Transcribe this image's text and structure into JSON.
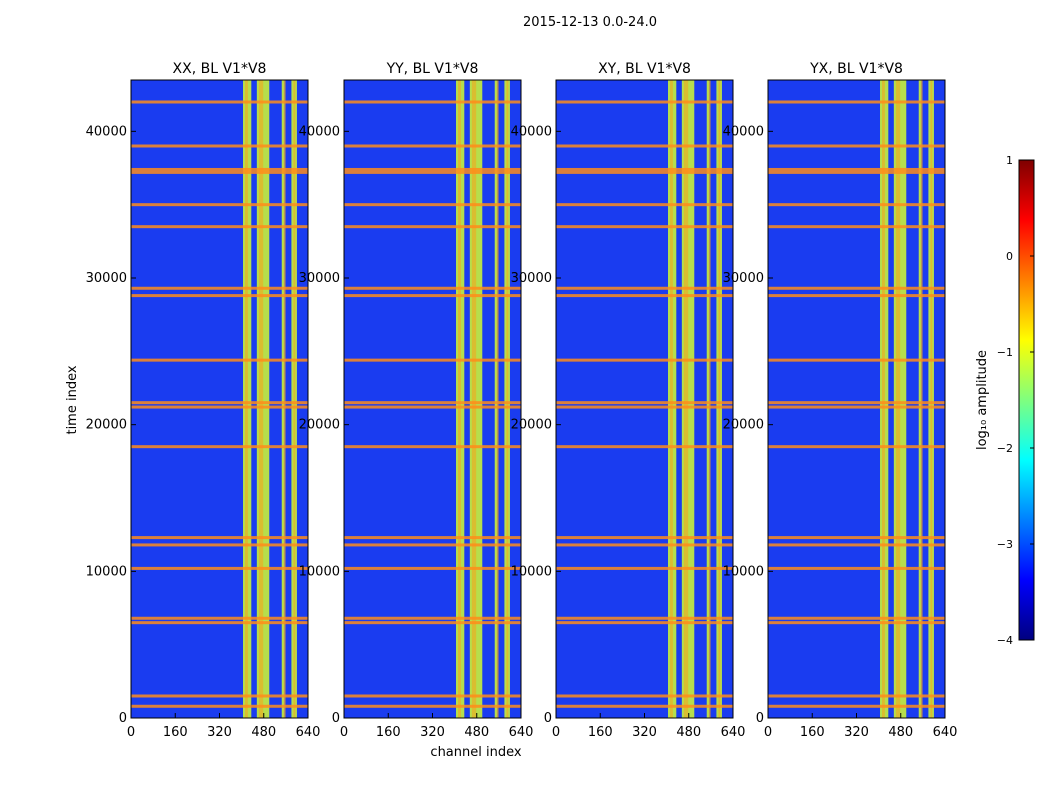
{
  "figure": {
    "suptitle": "2015-12-13 0.0-24.0"
  },
  "chart_data": {
    "type": "heatmap",
    "xlabel": "channel index",
    "ylabel": "time index",
    "xlim": [
      0,
      640
    ],
    "ylim": [
      0,
      43500
    ],
    "xticks": [
      0,
      160,
      320,
      480,
      640
    ],
    "yticks": [
      0,
      10000,
      20000,
      30000,
      40000
    ],
    "panels": [
      {
        "title": "XX, BL V1*V8",
        "polarization": "XX",
        "baseline": "V1*V8"
      },
      {
        "title": "YY, BL V1*V8",
        "polarization": "YY",
        "baseline": "V1*V8"
      },
      {
        "title": "XY, BL V1*V8",
        "polarization": "XY",
        "baseline": "V1*V8"
      },
      {
        "title": "YX, BL V1*V8",
        "polarization": "YX",
        "baseline": "V1*V8"
      }
    ],
    "bright_channel_bands": [
      [
        405,
        435
      ],
      [
        455,
        500
      ],
      [
        545,
        555
      ],
      [
        580,
        600
      ]
    ],
    "flagged_time_rows": [
      800,
      1500,
      6500,
      6800,
      10200,
      11800,
      12300,
      18500,
      21200,
      21500,
      24400,
      28800,
      29300,
      33500,
      35000,
      37200,
      37400,
      39000,
      42000
    ],
    "colorbar": {
      "label": "log₁₀ amplitude",
      "range": [
        -4,
        1
      ],
      "ticks": [
        {
          "value": 1,
          "label": "1"
        },
        {
          "value": 0,
          "label": "0"
        },
        {
          "value": -1,
          "label": "−1"
        },
        {
          "value": -2,
          "label": "−2"
        },
        {
          "value": -3,
          "label": "−3"
        },
        {
          "value": -4,
          "label": "−4"
        }
      ],
      "colormap": "jet"
    }
  }
}
